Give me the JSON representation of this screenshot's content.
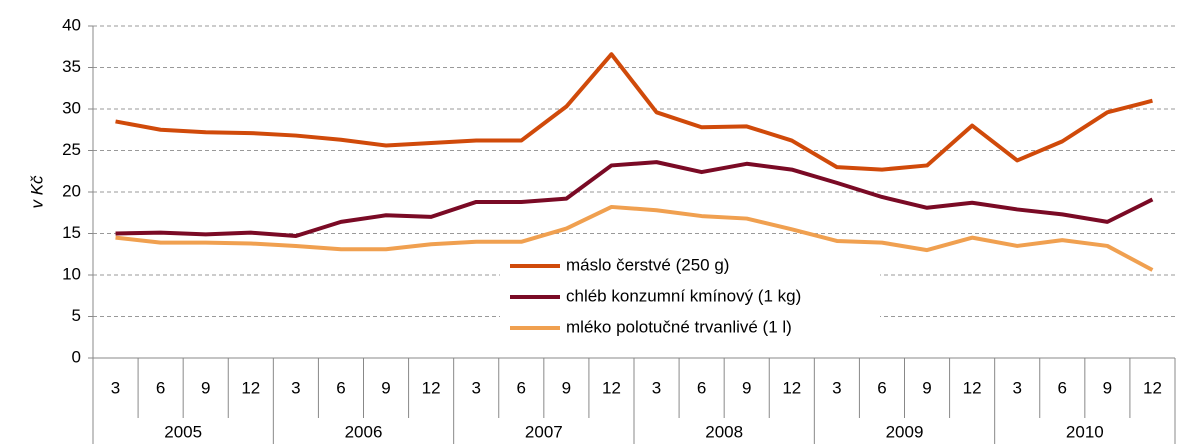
{
  "chart_data": {
    "type": "line",
    "y_label": "v Kč",
    "categories": [
      "3",
      "6",
      "9",
      "12",
      "3",
      "6",
      "9",
      "12",
      "3",
      "6",
      "9",
      "12",
      "3",
      "6",
      "9",
      "12",
      "3",
      "6",
      "9",
      "12",
      "3",
      "6",
      "9",
      "12"
    ],
    "groups": [
      "2005",
      "2006",
      "2007",
      "2008",
      "2009",
      "2010"
    ],
    "series": [
      {
        "name": "máslo čerstvé (250 g)",
        "color": "#d04a0a",
        "values": [
          28.5,
          27.5,
          27.2,
          27.1,
          26.8,
          26.3,
          25.6,
          25.9,
          26.2,
          26.2,
          30.3,
          36.6,
          29.6,
          27.8,
          27.9,
          26.2,
          23.0,
          22.7,
          23.2,
          28.0,
          23.8,
          26.1,
          29.6,
          31.0
        ]
      },
      {
        "name": "chléb konzumní kmínový (1 kg)",
        "color": "#7a0a25",
        "values": [
          15.0,
          15.1,
          14.9,
          15.1,
          14.7,
          16.4,
          17.2,
          17.0,
          18.8,
          18.8,
          19.2,
          23.2,
          23.6,
          22.4,
          23.4,
          22.7,
          21.1,
          19.4,
          18.1,
          18.7,
          17.9,
          17.3,
          16.4,
          19.1
        ]
      },
      {
        "name": "mléko polotučné trvanlivé (1 l)",
        "color": "#f0a050",
        "values": [
          14.5,
          13.9,
          13.9,
          13.8,
          13.5,
          13.1,
          13.1,
          13.7,
          14.0,
          14.0,
          15.6,
          18.2,
          17.8,
          17.1,
          16.8,
          15.5,
          14.1,
          13.9,
          13.0,
          14.5,
          13.5,
          14.2,
          13.5,
          10.6
        ]
      }
    ],
    "ylim": [
      0,
      40
    ],
    "yticks": [
      0,
      5,
      10,
      15,
      20,
      25,
      30,
      35,
      40
    ],
    "grid": true
  }
}
